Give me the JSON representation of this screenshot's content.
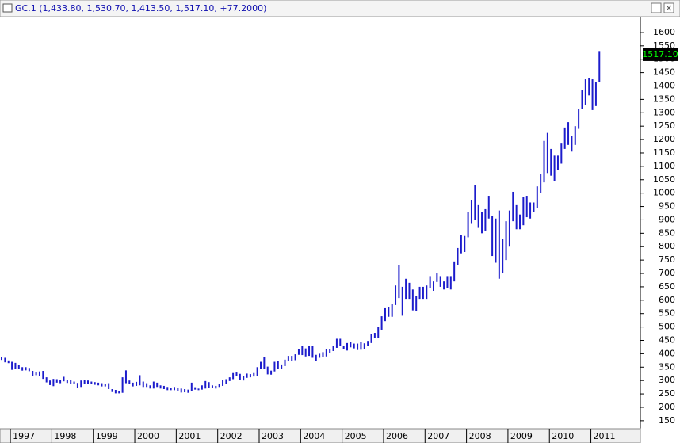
{
  "chart_data": {
    "type": "range-bar",
    "title": "GC.1 (1,433.80, 1,530.70, 1,413.50, 1,517.10, +77.2000)",
    "color": "#1c1ccc",
    "categories": [
      null,
      null,
      null,
      "1997",
      null,
      null,
      null,
      null,
      null,
      null,
      null,
      null,
      null,
      null,
      null,
      "1998",
      null,
      null,
      null,
      null,
      null,
      null,
      null,
      null,
      null,
      null,
      null,
      "1999",
      null,
      null,
      null,
      null,
      null,
      null,
      null,
      null,
      null,
      null,
      null,
      "2000",
      null,
      null,
      null,
      null,
      null,
      null,
      null,
      null,
      null,
      null,
      null,
      "2001",
      null,
      null,
      null,
      null,
      null,
      null,
      null,
      null,
      null,
      null,
      null,
      "2002",
      null,
      null,
      null,
      null,
      null,
      null,
      null,
      null,
      null,
      null,
      null,
      "2003",
      null,
      null,
      null,
      null,
      null,
      null,
      null,
      null,
      null,
      null,
      null,
      "2004",
      null,
      null,
      null,
      null,
      null,
      null,
      null,
      null,
      null,
      null,
      null,
      "2005",
      null,
      null,
      null,
      null,
      null,
      null,
      null,
      null,
      null,
      null,
      null,
      "2006",
      null,
      null,
      null,
      null,
      null,
      null,
      null,
      null,
      null,
      null,
      null,
      "2007",
      null,
      null,
      null,
      null,
      null,
      null,
      null,
      null,
      null,
      null,
      null,
      "2008",
      null,
      null,
      null,
      null,
      null,
      null,
      null,
      null,
      null,
      null,
      null,
      "2009",
      null,
      null,
      null,
      null,
      null,
      null,
      null,
      null,
      null,
      null,
      null,
      "2010",
      null,
      null,
      null,
      null,
      null,
      null,
      null,
      null,
      null,
      null,
      null,
      "2011",
      null,
      null
    ],
    "high": [
      388,
      385,
      375,
      370,
      366,
      358,
      350,
      350,
      347,
      336,
      330,
      334,
      336,
      312,
      300,
      306,
      305,
      302,
      314,
      302,
      301,
      296,
      291,
      300,
      302,
      300,
      296,
      294,
      292,
      290,
      288,
      290,
      268,
      265,
      260,
      312,
      338,
      300,
      292,
      295,
      320,
      296,
      290,
      282,
      296,
      292,
      282,
      280,
      276,
      272,
      276,
      272,
      270,
      268,
      266,
      292,
      275,
      270,
      282,
      298,
      294,
      282,
      280,
      286,
      302,
      305,
      312,
      328,
      330,
      325,
      316,
      326,
      324,
      328,
      350,
      370,
      388,
      352,
      337,
      370,
      374,
      360,
      378,
      392,
      392,
      398,
      418,
      428,
      420,
      428,
      428,
      396,
      400,
      406,
      418,
      418,
      430,
      456,
      456,
      428,
      440,
      445,
      438,
      438,
      443,
      439,
      448,
      475,
      478,
      500,
      540,
      570,
      575,
      585,
      655,
      730,
      650,
      680,
      665,
      640,
      615,
      650,
      650,
      655,
      690,
      670,
      700,
      690,
      670,
      690,
      690,
      745,
      795,
      845,
      840,
      930,
      975,
      1030,
      955,
      930,
      940,
      990,
      915,
      905,
      935,
      830,
      895,
      935,
      1005,
      955,
      920,
      985,
      990,
      965,
      965,
      1025,
      1070,
      1195,
      1225,
      1165,
      1140,
      1140,
      1185,
      1245,
      1265,
      1215,
      1250,
      1315,
      1385,
      1425,
      1430,
      1425,
      1415,
      1530.7
    ],
    "low": [
      377,
      368,
      365,
      340,
      342,
      344,
      337,
      338,
      335,
      318,
      320,
      318,
      306,
      293,
      283,
      279,
      292,
      290,
      297,
      291,
      288,
      288,
      272,
      276,
      288,
      288,
      286,
      284,
      282,
      278,
      278,
      268,
      257,
      252,
      252,
      254,
      290,
      288,
      278,
      280,
      282,
      276,
      276,
      270,
      270,
      276,
      270,
      268,
      264,
      264,
      264,
      262,
      255,
      256,
      254,
      262,
      266,
      264,
      266,
      270,
      272,
      272,
      270,
      276,
      280,
      288,
      298,
      305,
      316,
      302,
      300,
      310,
      312,
      315,
      316,
      344,
      344,
      323,
      322,
      334,
      344,
      342,
      354,
      372,
      372,
      376,
      396,
      395,
      390,
      392,
      385,
      372,
      385,
      388,
      390,
      402,
      410,
      422,
      430,
      416,
      412,
      424,
      420,
      414,
      415,
      416,
      428,
      440,
      460,
      460,
      490,
      522,
      538,
      538,
      582,
      608,
      542,
      605,
      605,
      562,
      560,
      605,
      605,
      605,
      644,
      635,
      668,
      650,
      640,
      645,
      640,
      670,
      730,
      775,
      780,
      835,
      885,
      900,
      870,
      850,
      860,
      905,
      765,
      740,
      680,
      700,
      750,
      800,
      895,
      865,
      865,
      880,
      910,
      905,
      930,
      945,
      1000,
      1040,
      1075,
      1065,
      1045,
      1085,
      1110,
      1165,
      1180,
      1155,
      1180,
      1240,
      1315,
      1330,
      1365,
      1310,
      1325,
      1413.5
    ],
    "ylim": [
      120,
      1656
    ],
    "yticks": [
      150,
      200,
      250,
      300,
      350,
      400,
      450,
      500,
      550,
      600,
      650,
      700,
      750,
      800,
      850,
      900,
      950,
      1000,
      1050,
      1100,
      1150,
      1200,
      1250,
      1300,
      1350,
      1400,
      1450,
      1500,
      1550,
      1600
    ],
    "last_price": {
      "value": 1517.1,
      "label": "1517.10"
    }
  }
}
